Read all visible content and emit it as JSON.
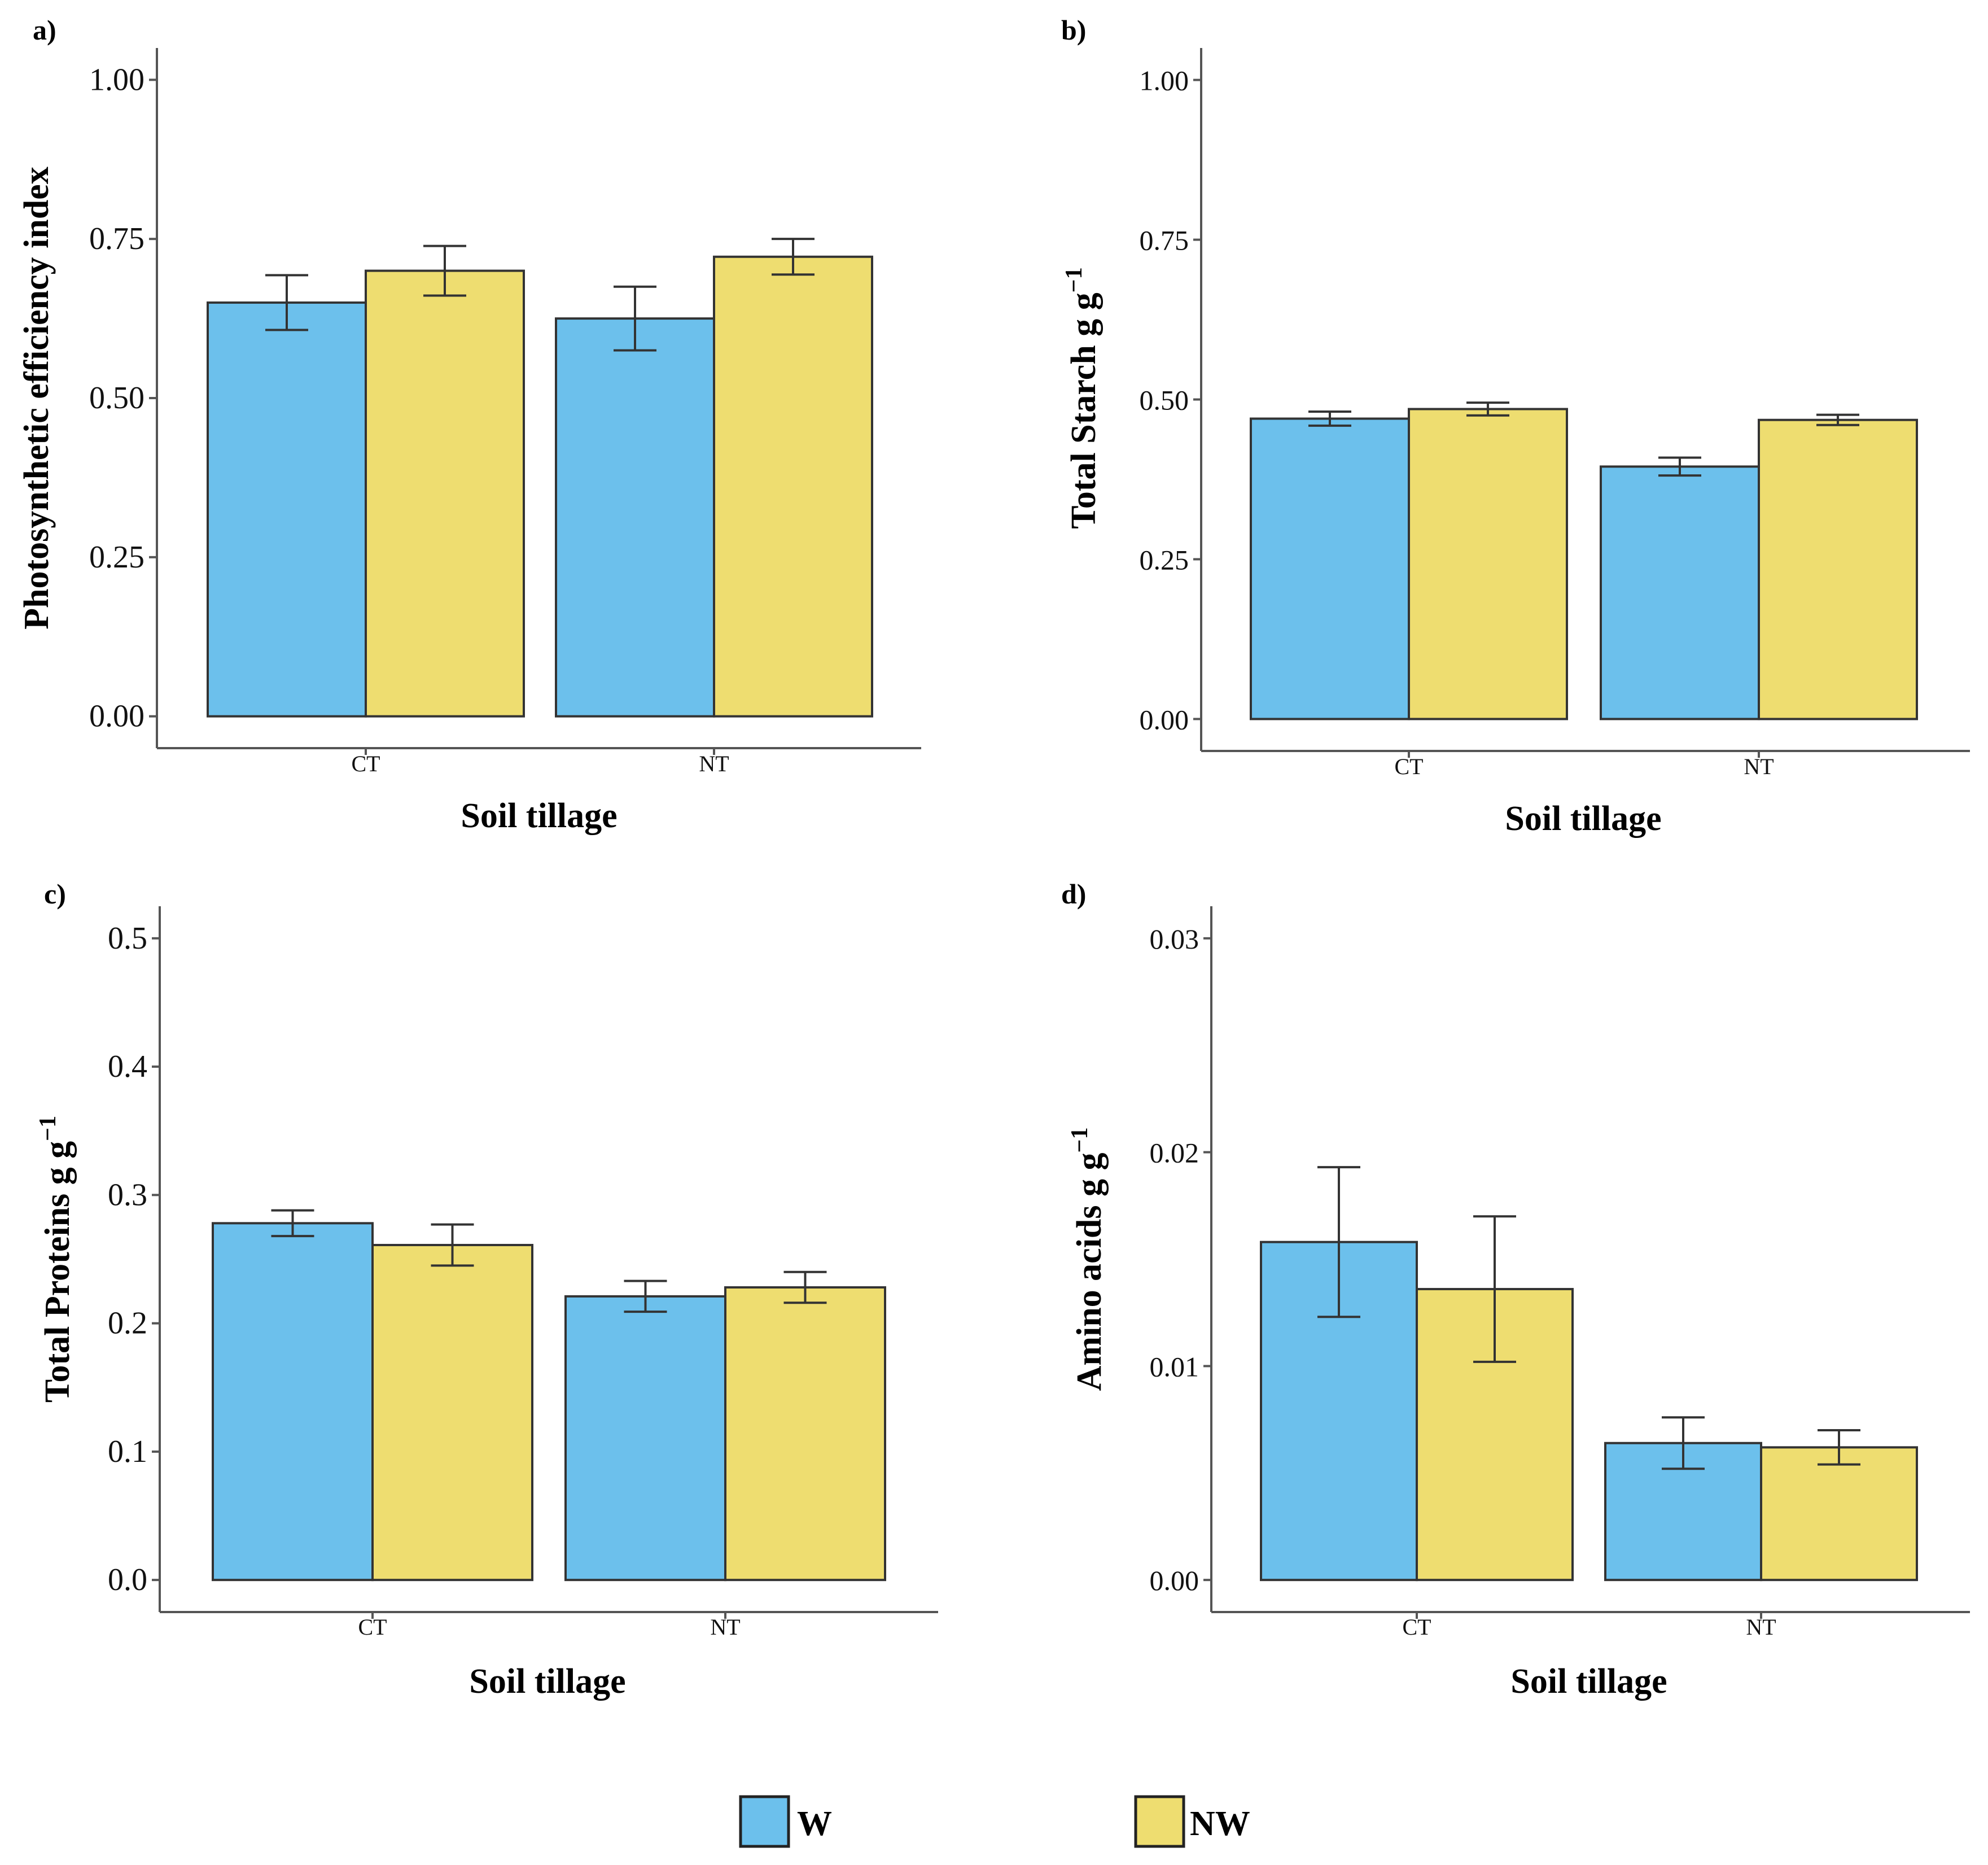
{
  "chart_data": [
    {
      "id": "a",
      "type": "bar",
      "panel_label": "a)",
      "categories": [
        "CT",
        "NT"
      ],
      "series": [
        {
          "name": "W",
          "color": "#6cc0ec",
          "values": [
            0.65,
            0.625
          ],
          "errors": [
            0.043,
            0.05
          ]
        },
        {
          "name": "NW",
          "color": "#eedd70",
          "values": [
            0.7,
            0.722
          ],
          "errors": [
            0.039,
            0.028
          ]
        }
      ],
      "xlabel": "Soil tillage",
      "ylabel": "Photosynthetic efficiency index",
      "ylabel_sup": "",
      "ylim": [
        -0.05,
        1.05
      ],
      "yticks": [
        "0.00",
        "0.25",
        "0.50",
        "0.75",
        "1.00"
      ],
      "ytick_values": [
        0,
        0.25,
        0.5,
        0.75,
        1.0
      ]
    },
    {
      "id": "b",
      "type": "bar",
      "panel_label": "b)",
      "categories": [
        "CT",
        "NT"
      ],
      "series": [
        {
          "name": "W",
          "color": "#6cc0ec",
          "values": [
            0.47,
            0.395
          ],
          "errors": [
            0.011,
            0.014
          ]
        },
        {
          "name": "NW",
          "color": "#eedd70",
          "values": [
            0.485,
            0.468
          ],
          "errors": [
            0.01,
            0.008
          ]
        }
      ],
      "xlabel": "Soil tillage",
      "ylabel": "Total Starch g g",
      "ylabel_sup": "−1",
      "ylim": [
        -0.05,
        1.05
      ],
      "yticks": [
        "0.00",
        "0.25",
        "0.50",
        "0.75",
        "1.00"
      ],
      "ytick_values": [
        0,
        0.25,
        0.5,
        0.75,
        1.0
      ]
    },
    {
      "id": "c",
      "type": "bar",
      "panel_label": "c)",
      "categories": [
        "CT",
        "NT"
      ],
      "series": [
        {
          "name": "W",
          "color": "#6cc0ec",
          "values": [
            0.278,
            0.221
          ],
          "errors": [
            0.01,
            0.012
          ]
        },
        {
          "name": "NW",
          "color": "#eedd70",
          "values": [
            0.261,
            0.228
          ],
          "errors": [
            0.016,
            0.012
          ]
        }
      ],
      "xlabel": "Soil tillage",
      "ylabel": "Total Proteins g g",
      "ylabel_sup": "−1",
      "ylim": [
        -0.025,
        0.525
      ],
      "yticks": [
        "0.0",
        "0.1",
        "0.2",
        "0.3",
        "0.4",
        "0.5"
      ],
      "ytick_values": [
        0,
        0.1,
        0.2,
        0.3,
        0.4,
        0.5
      ]
    },
    {
      "id": "d",
      "type": "bar",
      "panel_label": "d)",
      "categories": [
        "CT",
        "NT"
      ],
      "series": [
        {
          "name": "W",
          "color": "#6cc0ec",
          "values": [
            0.0158,
            0.0064
          ],
          "errors": [
            0.0035,
            0.0012
          ]
        },
        {
          "name": "NW",
          "color": "#eedd70",
          "values": [
            0.0136,
            0.0062
          ],
          "errors": [
            0.0034,
            0.0008
          ]
        }
      ],
      "xlabel": "Soil tillage",
      "ylabel": "Amino acids g g",
      "ylabel_sup": "−1",
      "ylim": [
        -0.0015,
        0.0315
      ],
      "yticks": [
        "0.00",
        "0.01",
        "0.02",
        "0.03"
      ],
      "ytick_values": [
        0,
        0.01,
        0.02,
        0.03
      ]
    }
  ],
  "legend": {
    "items": [
      {
        "label": "W",
        "color": "#6cc0ec"
      },
      {
        "label": "NW",
        "color": "#eedd70"
      }
    ]
  }
}
